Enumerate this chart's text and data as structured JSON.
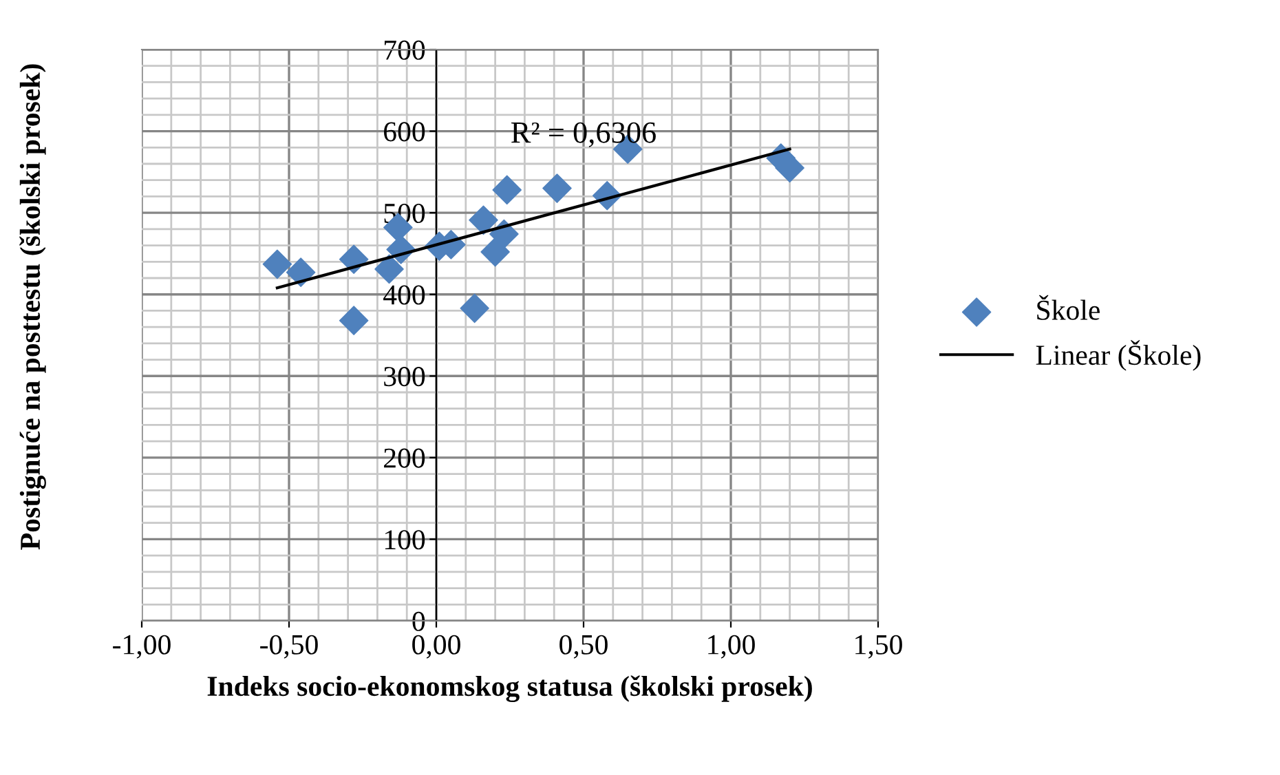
{
  "chart_data": {
    "type": "scatter",
    "xlabel": "Indeks socio-ekonomskog statusa (školski prosek)",
    "ylabel": "Postignuće na posttestu (školski prosek)",
    "series": [
      {
        "name": "Škole",
        "color": "#4f81bd",
        "marker": "diamond",
        "x": [
          -0.54,
          -0.46,
          -0.28,
          -0.28,
          -0.16,
          -0.13,
          -0.12,
          0.01,
          0.05,
          0.13,
          0.16,
          0.2,
          0.23,
          0.24,
          0.41,
          0.58,
          0.65,
          1.17,
          1.2
        ],
        "values": [
          437,
          427,
          443,
          368,
          431,
          482,
          455,
          459,
          461,
          383,
          491,
          452,
          474,
          528,
          530,
          521,
          578,
          567,
          555
        ]
      },
      {
        "name": "Linear (Škole)",
        "type": "line",
        "color": "#000000",
        "marker": "none",
        "x": [
          -0.54,
          1.2
        ],
        "values": [
          408,
          578
        ]
      }
    ],
    "annotations": [
      "R² = 0,6306"
    ],
    "xlim": [
      -1,
      1.5
    ],
    "xticks": [
      {
        "value": -1,
        "label": "-1,00"
      },
      {
        "value": -0.5,
        "label": "-0,50"
      },
      {
        "value": 0,
        "label": "0,00"
      },
      {
        "value": 0.5,
        "label": "0,50"
      },
      {
        "value": 1,
        "label": "1,00"
      },
      {
        "value": 1.5,
        "label": "1,50"
      }
    ],
    "ylim": [
      0,
      700
    ],
    "yticks": [
      0,
      100,
      200,
      300,
      400,
      500,
      600,
      700
    ],
    "grid": true,
    "legend": "right"
  }
}
